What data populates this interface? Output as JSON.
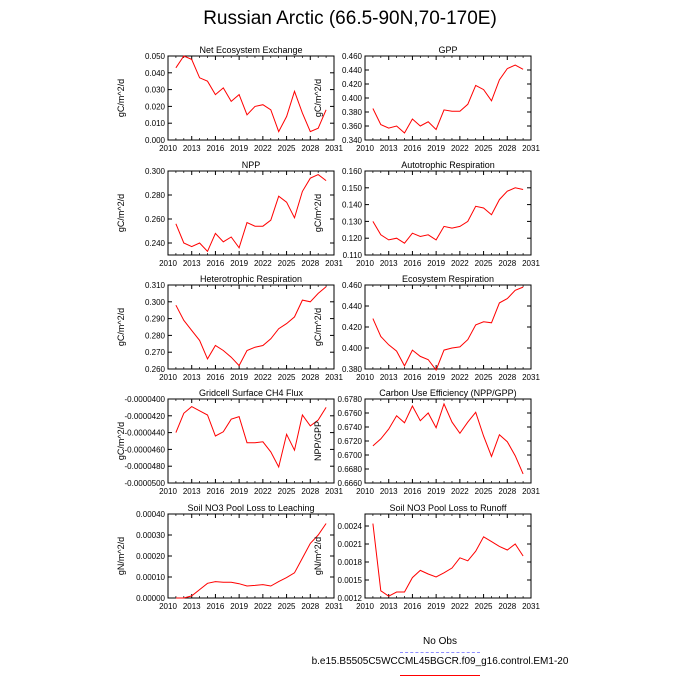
{
  "title": "Russian Arctic (66.5-90N,70-170E)",
  "legend": {
    "obs_label": "No Obs",
    "ctl_label": "b.e15.B5505C5WCCML45BGCR.f09_g16.control.EM1-20",
    "obs_color": "#8f8fff",
    "ctl_color": "#ff0000"
  },
  "chart_data": [
    {
      "type": "line",
      "title": "Net Ecosystem Exchange",
      "ylabel": "gC/m^2/d",
      "xlim": [
        2010,
        2031
      ],
      "xticks": [
        2010,
        2013,
        2016,
        2019,
        2022,
        2025,
        2028,
        2031
      ],
      "ylim": [
        0.0,
        0.05
      ],
      "yticks": [
        "0.000",
        "0.010",
        "0.020",
        "0.030",
        "0.040",
        "0.050"
      ],
      "ytick_values": [
        0.0,
        0.01,
        0.02,
        0.03,
        0.04,
        0.05
      ],
      "x": [
        2011,
        2012,
        2013,
        2014,
        2015,
        2016,
        2017,
        2018,
        2019,
        2020,
        2021,
        2022,
        2023,
        2024,
        2025,
        2026,
        2027,
        2028,
        2029,
        2030
      ],
      "series": [
        {
          "color": "#ff0000",
          "values": [
            0.043,
            0.05,
            0.048,
            0.037,
            0.035,
            0.027,
            0.031,
            0.023,
            0.027,
            0.015,
            0.02,
            0.021,
            0.018,
            0.005,
            0.014,
            0.029,
            0.016,
            0.005,
            0.007,
            0.018
          ]
        }
      ]
    },
    {
      "type": "line",
      "title": "GPP",
      "ylabel": "gC/m^2/d",
      "xlim": [
        2010,
        2031
      ],
      "xticks": [
        2010,
        2013,
        2016,
        2019,
        2022,
        2025,
        2028,
        2031
      ],
      "ylim": [
        0.34,
        0.46
      ],
      "yticks": [
        "0.340",
        "0.360",
        "0.380",
        "0.400",
        "0.420",
        "0.440",
        "0.460"
      ],
      "ytick_values": [
        0.34,
        0.36,
        0.38,
        0.4,
        0.42,
        0.44,
        0.46
      ],
      "x": [
        2011,
        2012,
        2013,
        2014,
        2015,
        2016,
        2017,
        2018,
        2019,
        2020,
        2021,
        2022,
        2023,
        2024,
        2025,
        2026,
        2027,
        2028,
        2029,
        2030
      ],
      "series": [
        {
          "color": "#ff0000",
          "values": [
            0.385,
            0.362,
            0.357,
            0.36,
            0.35,
            0.37,
            0.36,
            0.366,
            0.355,
            0.383,
            0.381,
            0.381,
            0.391,
            0.418,
            0.412,
            0.396,
            0.426,
            0.442,
            0.447,
            0.441
          ]
        }
      ]
    },
    {
      "type": "line",
      "title": "NPP",
      "ylabel": "gC/m^2/d",
      "xlim": [
        2010,
        2031
      ],
      "xticks": [
        2010,
        2013,
        2016,
        2019,
        2022,
        2025,
        2028,
        2031
      ],
      "ylim": [
        0.23,
        0.3
      ],
      "yticks": [
        "0.240",
        "0.260",
        "0.280",
        "0.300"
      ],
      "ytick_values": [
        0.24,
        0.26,
        0.28,
        0.3
      ],
      "x": [
        2011,
        2012,
        2013,
        2014,
        2015,
        2016,
        2017,
        2018,
        2019,
        2020,
        2021,
        2022,
        2023,
        2024,
        2025,
        2026,
        2027,
        2028,
        2029,
        2030
      ],
      "series": [
        {
          "color": "#ff0000",
          "values": [
            0.256,
            0.24,
            0.237,
            0.24,
            0.233,
            0.248,
            0.241,
            0.245,
            0.236,
            0.257,
            0.254,
            0.254,
            0.259,
            0.279,
            0.274,
            0.261,
            0.283,
            0.294,
            0.297,
            0.292
          ]
        }
      ]
    },
    {
      "type": "line",
      "title": "Autotrophic Respiration",
      "ylabel": "gC/m^2/d",
      "xlim": [
        2010,
        2031
      ],
      "xticks": [
        2010,
        2013,
        2016,
        2019,
        2022,
        2025,
        2028,
        2031
      ],
      "ylim": [
        0.11,
        0.16
      ],
      "yticks": [
        "0.110",
        "0.120",
        "0.130",
        "0.140",
        "0.150",
        "0.160"
      ],
      "ytick_values": [
        0.11,
        0.12,
        0.13,
        0.14,
        0.15,
        0.16
      ],
      "x": [
        2011,
        2012,
        2013,
        2014,
        2015,
        2016,
        2017,
        2018,
        2019,
        2020,
        2021,
        2022,
        2023,
        2024,
        2025,
        2026,
        2027,
        2028,
        2029,
        2030
      ],
      "series": [
        {
          "color": "#ff0000",
          "values": [
            0.13,
            0.122,
            0.119,
            0.12,
            0.117,
            0.123,
            0.121,
            0.122,
            0.119,
            0.127,
            0.126,
            0.127,
            0.13,
            0.139,
            0.138,
            0.134,
            0.143,
            0.148,
            0.15,
            0.149
          ]
        }
      ]
    },
    {
      "type": "line",
      "title": "Heterotrophic Respiration",
      "ylabel": "gC/m^2/d",
      "xlim": [
        2010,
        2031
      ],
      "xticks": [
        2010,
        2013,
        2016,
        2019,
        2022,
        2025,
        2028,
        2031
      ],
      "ylim": [
        0.26,
        0.31
      ],
      "yticks": [
        "0.260",
        "0.270",
        "0.280",
        "0.290",
        "0.300",
        "0.310"
      ],
      "ytick_values": [
        0.26,
        0.27,
        0.28,
        0.29,
        0.3,
        0.31
      ],
      "x": [
        2011,
        2012,
        2013,
        2014,
        2015,
        2016,
        2017,
        2018,
        2019,
        2020,
        2021,
        2022,
        2023,
        2024,
        2025,
        2026,
        2027,
        2028,
        2029,
        2030
      ],
      "series": [
        {
          "color": "#ff0000",
          "values": [
            0.298,
            0.289,
            0.283,
            0.277,
            0.266,
            0.274,
            0.271,
            0.267,
            0.262,
            0.271,
            0.273,
            0.274,
            0.278,
            0.284,
            0.287,
            0.291,
            0.301,
            0.3,
            0.305,
            0.309
          ]
        }
      ]
    },
    {
      "type": "line",
      "title": "Ecosystem Respiration",
      "ylabel": "gC/m^2/d",
      "xlim": [
        2010,
        2031
      ],
      "xticks": [
        2010,
        2013,
        2016,
        2019,
        2022,
        2025,
        2028,
        2031
      ],
      "ylim": [
        0.38,
        0.46
      ],
      "yticks": [
        "0.380",
        "0.400",
        "0.420",
        "0.440",
        "0.460"
      ],
      "ytick_values": [
        0.38,
        0.4,
        0.42,
        0.44,
        0.46
      ],
      "x": [
        2011,
        2012,
        2013,
        2014,
        2015,
        2016,
        2017,
        2018,
        2019,
        2020,
        2021,
        2022,
        2023,
        2024,
        2025,
        2026,
        2027,
        2028,
        2029,
        2030
      ],
      "series": [
        {
          "color": "#ff0000",
          "values": [
            0.428,
            0.411,
            0.403,
            0.397,
            0.383,
            0.398,
            0.392,
            0.389,
            0.379,
            0.398,
            0.4,
            0.401,
            0.408,
            0.422,
            0.425,
            0.424,
            0.443,
            0.447,
            0.455,
            0.458
          ]
        }
      ]
    },
    {
      "type": "line",
      "title": "Gridcell Surface CH4 Flux",
      "ylabel": "gC/m^2/d",
      "xlim": [
        2010,
        2031
      ],
      "xticks": [
        2010,
        2013,
        2016,
        2019,
        2022,
        2025,
        2028,
        2031
      ],
      "ylim": [
        -5e-05,
        -4e-05
      ],
      "yticks": [
        "-0.0000500",
        "-0.0000480",
        "-0.0000460",
        "-0.0000440",
        "-0.0000420",
        "-0.0000400"
      ],
      "ytick_values": [
        -5e-05,
        -4.8e-05,
        -4.6e-05,
        -4.4e-05,
        -4.2e-05,
        -4e-05
      ],
      "x": [
        2011,
        2012,
        2013,
        2014,
        2015,
        2016,
        2017,
        2018,
        2019,
        2020,
        2021,
        2022,
        2023,
        2024,
        2025,
        2026,
        2027,
        2028,
        2029,
        2030
      ],
      "series": [
        {
          "color": "#ff0000",
          "values": [
            -4.4e-05,
            -4.17e-05,
            -4.09e-05,
            -4.14e-05,
            -4.19e-05,
            -4.44e-05,
            -4.39e-05,
            -4.24e-05,
            -4.21e-05,
            -4.52e-05,
            -4.52e-05,
            -4.51e-05,
            -4.63e-05,
            -4.81e-05,
            -4.42e-05,
            -4.61e-05,
            -4.19e-05,
            -4.32e-05,
            -4.25e-05,
            -4.1e-05
          ]
        }
      ]
    },
    {
      "type": "line",
      "title": "Carbon Use Efficiency (NPP/GPP)",
      "ylabel": "NPP/GPP",
      "xlim": [
        2010,
        2031
      ],
      "xticks": [
        2010,
        2013,
        2016,
        2019,
        2022,
        2025,
        2028,
        2031
      ],
      "ylim": [
        0.666,
        0.678
      ],
      "yticks": [
        "0.6660",
        "0.6680",
        "0.6700",
        "0.6720",
        "0.6740",
        "0.6760",
        "0.6780"
      ],
      "ytick_values": [
        0.666,
        0.668,
        0.67,
        0.672,
        0.674,
        0.676,
        0.678
      ],
      "x": [
        2011,
        2012,
        2013,
        2014,
        2015,
        2016,
        2017,
        2018,
        2019,
        2020,
        2021,
        2022,
        2023,
        2024,
        2025,
        2026,
        2027,
        2028,
        2029,
        2030
      ],
      "series": [
        {
          "color": "#ff0000",
          "values": [
            0.6713,
            0.6723,
            0.6737,
            0.6756,
            0.6746,
            0.677,
            0.6749,
            0.676,
            0.6739,
            0.6773,
            0.6747,
            0.6731,
            0.6747,
            0.6761,
            0.6727,
            0.6698,
            0.6729,
            0.6719,
            0.6699,
            0.6673
          ]
        }
      ]
    },
    {
      "type": "line",
      "title": "Soil NO3 Pool Loss to Leaching",
      "ylabel": "gN/m^2/d",
      "xlim": [
        2010,
        2031
      ],
      "xticks": [
        2010,
        2013,
        2016,
        2019,
        2022,
        2025,
        2028,
        2031
      ],
      "ylim": [
        0.0,
        0.0004
      ],
      "yticks": [
        "0.00000",
        "0.00010",
        "0.00020",
        "0.00030",
        "0.00040"
      ],
      "ytick_values": [
        0.0,
        0.0001,
        0.0002,
        0.0003,
        0.0004
      ],
      "x": [
        2011,
        2012,
        2013,
        2014,
        2015,
        2016,
        2017,
        2018,
        2019,
        2020,
        2021,
        2022,
        2023,
        2024,
        2025,
        2026,
        2027,
        2028,
        2029,
        2030
      ],
      "series": [
        {
          "color": "#ff0000",
          "values": [
            0.0,
            0.0,
            1e-05,
            4e-05,
            7e-05,
            7.8e-05,
            7.5e-05,
            7.5e-05,
            6.8e-05,
            5.7e-05,
            6e-05,
            6.4e-05,
            5.7e-05,
            7.8e-05,
            9.7e-05,
            0.00012,
            0.00019,
            0.00026,
            0.0003,
            0.000355
          ]
        }
      ]
    },
    {
      "type": "line",
      "title": "Soil NO3 Pool Loss to Runoff",
      "ylabel": "gN/m^2/d",
      "xlim": [
        2010,
        2031
      ],
      "xticks": [
        2010,
        2013,
        2016,
        2019,
        2022,
        2025,
        2028,
        2031
      ],
      "ylim": [
        0.0012,
        0.0026
      ],
      "yticks": [
        "0.0012",
        "0.0015",
        "0.0018",
        "0.0021",
        "0.0024"
      ],
      "ytick_values": [
        0.0012,
        0.0015,
        0.0018,
        0.0021,
        0.0024
      ],
      "x": [
        2011,
        2012,
        2013,
        2014,
        2015,
        2016,
        2017,
        2018,
        2019,
        2020,
        2021,
        2022,
        2023,
        2024,
        2025,
        2026,
        2027,
        2028,
        2029,
        2030
      ],
      "series": [
        {
          "color": "#ff0000",
          "values": [
            0.00244,
            0.00132,
            0.00123,
            0.0013,
            0.0013,
            0.00154,
            0.00166,
            0.0016,
            0.00155,
            0.00162,
            0.0017,
            0.00187,
            0.00182,
            0.00198,
            0.00222,
            0.00214,
            0.00206,
            0.002,
            0.0021,
            0.0019
          ]
        }
      ]
    }
  ]
}
